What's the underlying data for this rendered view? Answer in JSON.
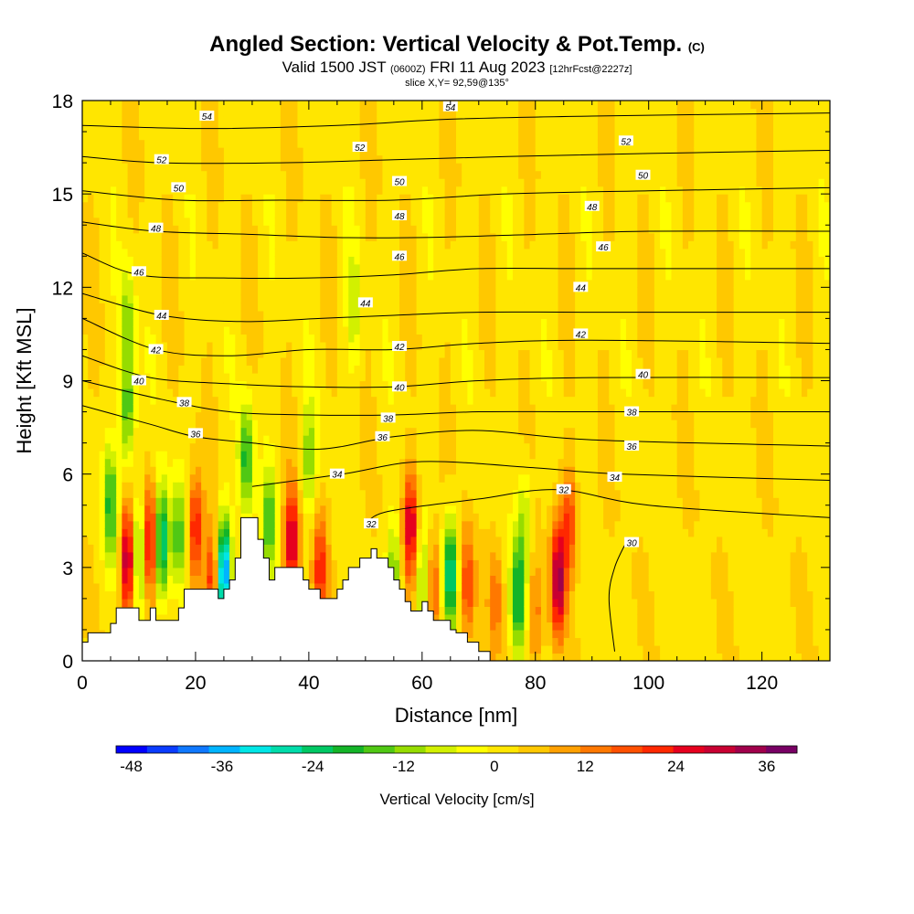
{
  "header": {
    "title_main": "Angled Section: Vertical Velocity & Pot.Temp.",
    "title_unit": "(C)",
    "valid_prefix": "Valid 1500 JST",
    "valid_z": "(0600Z)",
    "valid_date": "FRI 11 Aug 2023",
    "valid_fcst": "[12hrFcst@2227z]",
    "slice": "slice X,Y= 92,59@135°"
  },
  "chart_data": {
    "type": "heatmap",
    "xlabel": "Distance [nm]",
    "ylabel": "Height [Kft MSL]",
    "xlim": [
      0,
      132
    ],
    "ylim": [
      0,
      18
    ],
    "x_ticks": [
      0,
      20,
      40,
      60,
      80,
      100,
      120
    ],
    "y_ticks": [
      0,
      3,
      6,
      9,
      12,
      15,
      18
    ],
    "colorbar": {
      "label": "Vertical Velocity [cm/s]",
      "range": [
        -50,
        40
      ],
      "ticks": [
        -48,
        -36,
        -24,
        -12,
        0,
        12,
        24,
        36
      ],
      "colors": [
        "#0000ff",
        "#0a3cff",
        "#0f78ff",
        "#00b4ff",
        "#00e6e6",
        "#00dcaa",
        "#00c864",
        "#14b428",
        "#50c814",
        "#96dc00",
        "#d2f000",
        "#ffff00",
        "#ffe600",
        "#ffc800",
        "#ffa000",
        "#ff7800",
        "#ff5000",
        "#ff2800",
        "#e6001e",
        "#c80032",
        "#a0004b",
        "#780064"
      ]
    },
    "terrain_x": [
      0,
      1,
      2,
      3,
      4,
      5,
      6,
      7,
      8,
      9,
      10,
      11,
      12,
      13,
      14,
      15,
      16,
      17,
      18,
      19,
      20,
      21,
      22,
      23,
      24,
      25,
      26,
      27,
      28,
      29,
      30,
      31,
      32,
      33,
      34,
      35,
      36,
      37,
      38,
      39,
      40,
      41,
      42,
      43,
      44,
      45,
      46,
      47,
      48,
      49,
      50,
      51,
      52,
      53,
      54,
      55,
      56,
      57,
      58,
      59,
      60,
      61,
      62,
      63,
      64,
      65,
      66,
      67,
      68,
      69,
      70,
      71,
      72,
      73,
      132
    ],
    "terrain_y": [
      0.6,
      0.9,
      0.9,
      0.9,
      0.9,
      1.2,
      1.7,
      1.7,
      1.7,
      1.7,
      1.3,
      1.3,
      1.7,
      1.3,
      1.3,
      1.3,
      1.3,
      1.7,
      2.3,
      2.3,
      2.3,
      2.3,
      2.3,
      2.3,
      2.0,
      2.3,
      2.6,
      3.3,
      4.6,
      4.6,
      4.6,
      3.9,
      3.3,
      2.6,
      3.0,
      3.0,
      3.0,
      3.0,
      3.0,
      2.6,
      2.3,
      2.3,
      2.0,
      2.0,
      2.0,
      2.3,
      2.6,
      3.0,
      3.0,
      3.3,
      3.3,
      3.6,
      3.3,
      3.3,
      3.0,
      2.6,
      2.3,
      1.9,
      1.6,
      1.6,
      1.9,
      1.6,
      1.3,
      1.3,
      1.3,
      1.0,
      0.9,
      0.9,
      0.6,
      0.6,
      0.3,
      0.3,
      0.0,
      0.0,
      0.0
    ],
    "updrafts": [
      {
        "x": 8,
        "z": 3.2,
        "w": 32
      },
      {
        "x": 12,
        "z": 3.8,
        "w": 30
      },
      {
        "x": 20,
        "z": 4.2,
        "w": 24
      },
      {
        "x": 23,
        "z": 2.5,
        "w": 22
      },
      {
        "x": 37,
        "z": 3.8,
        "w": 28
      },
      {
        "x": 42,
        "z": 3.0,
        "w": 20
      },
      {
        "x": 58,
        "z": 4.3,
        "w": 28
      },
      {
        "x": 62,
        "z": 2.4,
        "w": 16
      },
      {
        "x": 68,
        "z": 2.5,
        "w": 18
      },
      {
        "x": 73,
        "z": 2.0,
        "w": 12
      },
      {
        "x": 84,
        "z": 2.6,
        "w": 32
      },
      {
        "x": 86,
        "z": 4.5,
        "w": 18
      },
      {
        "x": 80,
        "z": 1.5,
        "w": 12
      }
    ],
    "downdrafts": [
      {
        "x": 5,
        "z": 5.0,
        "w": -20
      },
      {
        "x": 10,
        "z": 3.5,
        "w": -22
      },
      {
        "x": 14,
        "z": 3.8,
        "w": -32
      },
      {
        "x": 17,
        "z": 4.0,
        "w": -18
      },
      {
        "x": 25,
        "z": 2.8,
        "w": -44
      },
      {
        "x": 29,
        "z": 6.5,
        "w": -22
      },
      {
        "x": 33,
        "z": 4.5,
        "w": -18
      },
      {
        "x": 40,
        "z": 6.5,
        "w": -14
      },
      {
        "x": 48,
        "z": 11.3,
        "w": -10
      },
      {
        "x": 55,
        "z": 2.8,
        "w": -16
      },
      {
        "x": 60,
        "z": 2.5,
        "w": -14
      },
      {
        "x": 65,
        "z": 2.8,
        "w": -30
      },
      {
        "x": 77,
        "z": 2.0,
        "w": -24
      },
      {
        "x": 78,
        "z": 4.5,
        "w": -12
      },
      {
        "x": 8,
        "z": 8.0,
        "w": -20
      },
      {
        "x": 8,
        "z": 11.0,
        "w": -14
      }
    ],
    "contours": [
      {
        "theta": 30,
        "points": [
          [
            96,
            3.8
          ],
          [
            94,
            3.0
          ],
          [
            93,
            2.0
          ],
          [
            94,
            0.3
          ]
        ]
      },
      {
        "theta": 32,
        "points": [
          [
            50,
            4.4
          ],
          [
            54,
            4.8
          ],
          [
            70,
            5.2
          ],
          [
            84,
            5.5
          ],
          [
            100,
            5.0
          ],
          [
            132,
            4.6
          ]
        ]
      },
      {
        "theta": 34,
        "points": [
          [
            30,
            5.6
          ],
          [
            46,
            6.0
          ],
          [
            60,
            6.4
          ],
          [
            80,
            6.2
          ],
          [
            95,
            6.0
          ],
          [
            132,
            5.8
          ]
        ]
      },
      {
        "theta": 36,
        "points": [
          [
            0,
            8.2
          ],
          [
            12,
            7.6
          ],
          [
            20,
            7.2
          ],
          [
            30,
            7.0
          ],
          [
            42,
            6.8
          ],
          [
            55,
            7.2
          ],
          [
            70,
            7.4
          ],
          [
            90,
            7.1
          ],
          [
            132,
            6.9
          ]
        ]
      },
      {
        "theta": 38,
        "points": [
          [
            0,
            9.0
          ],
          [
            14,
            8.4
          ],
          [
            26,
            8.0
          ],
          [
            40,
            7.9
          ],
          [
            55,
            7.9
          ],
          [
            70,
            8.0
          ],
          [
            90,
            8.0
          ],
          [
            132,
            8.0
          ]
        ]
      },
      {
        "theta": 40,
        "points": [
          [
            0,
            9.8
          ],
          [
            12,
            9.1
          ],
          [
            26,
            8.9
          ],
          [
            40,
            8.8
          ],
          [
            55,
            8.8
          ],
          [
            70,
            9.0
          ],
          [
            90,
            9.1
          ],
          [
            132,
            9.1
          ]
        ]
      },
      {
        "theta": 42,
        "points": [
          [
            0,
            11.0
          ],
          [
            13,
            10.0
          ],
          [
            26,
            9.8
          ],
          [
            40,
            10.0
          ],
          [
            55,
            10.0
          ],
          [
            70,
            10.2
          ],
          [
            90,
            10.3
          ],
          [
            132,
            10.2
          ]
        ]
      },
      {
        "theta": 44,
        "points": [
          [
            0,
            11.8
          ],
          [
            14,
            11.1
          ],
          [
            28,
            10.9
          ],
          [
            42,
            11.0
          ],
          [
            55,
            11.1
          ],
          [
            70,
            11.2
          ],
          [
            90,
            11.2
          ],
          [
            132,
            11.2
          ]
        ]
      },
      {
        "theta": 46,
        "points": [
          [
            0,
            13.1
          ],
          [
            10,
            12.4
          ],
          [
            25,
            12.3
          ],
          [
            40,
            12.3
          ],
          [
            55,
            12.4
          ],
          [
            70,
            12.6
          ],
          [
            90,
            12.6
          ],
          [
            132,
            12.6
          ]
        ]
      },
      {
        "theta": 48,
        "points": [
          [
            0,
            14.1
          ],
          [
            13,
            13.8
          ],
          [
            30,
            13.7
          ],
          [
            45,
            13.6
          ],
          [
            60,
            13.6
          ],
          [
            80,
            13.7
          ],
          [
            100,
            13.8
          ],
          [
            132,
            13.8
          ]
        ]
      },
      {
        "theta": 50,
        "points": [
          [
            0,
            15.1
          ],
          [
            17,
            14.8
          ],
          [
            35,
            14.8
          ],
          [
            55,
            14.8
          ],
          [
            75,
            15.0
          ],
          [
            100,
            15.1
          ],
          [
            132,
            15.2
          ]
        ]
      },
      {
        "theta": 52,
        "points": [
          [
            0,
            16.2
          ],
          [
            14,
            16.0
          ],
          [
            35,
            16.0
          ],
          [
            55,
            16.1
          ],
          [
            75,
            16.2
          ],
          [
            100,
            16.3
          ],
          [
            132,
            16.4
          ]
        ]
      },
      {
        "theta": 54,
        "points": [
          [
            0,
            17.2
          ],
          [
            22,
            17.1
          ],
          [
            45,
            17.2
          ],
          [
            65,
            17.4
          ],
          [
            90,
            17.5
          ],
          [
            132,
            17.6
          ]
        ]
      }
    ],
    "contour_labels": [
      {
        "x": 22,
        "z": 17.5,
        "text": "54"
      },
      {
        "x": 65,
        "z": 17.8,
        "text": "54"
      },
      {
        "x": 14,
        "z": 16.1,
        "text": "52"
      },
      {
        "x": 49,
        "z": 16.5,
        "text": "52"
      },
      {
        "x": 96,
        "z": 16.7,
        "text": "52"
      },
      {
        "x": 17,
        "z": 15.2,
        "text": "50"
      },
      {
        "x": 56,
        "z": 15.4,
        "text": "50"
      },
      {
        "x": 99,
        "z": 15.6,
        "text": "50"
      },
      {
        "x": 13,
        "z": 13.9,
        "text": "48"
      },
      {
        "x": 56,
        "z": 14.3,
        "text": "48"
      },
      {
        "x": 90,
        "z": 14.6,
        "text": "48"
      },
      {
        "x": 10,
        "z": 12.5,
        "text": "46"
      },
      {
        "x": 56,
        "z": 13.0,
        "text": "46"
      },
      {
        "x": 92,
        "z": 13.3,
        "text": "46"
      },
      {
        "x": 14,
        "z": 11.1,
        "text": "44"
      },
      {
        "x": 50,
        "z": 11.5,
        "text": "44"
      },
      {
        "x": 88,
        "z": 12.0,
        "text": "44"
      },
      {
        "x": 13,
        "z": 10.0,
        "text": "42"
      },
      {
        "x": 56,
        "z": 10.1,
        "text": "42"
      },
      {
        "x": 88,
        "z": 10.5,
        "text": "42"
      },
      {
        "x": 10,
        "z": 9.0,
        "text": "40"
      },
      {
        "x": 56,
        "z": 8.8,
        "text": "40"
      },
      {
        "x": 99,
        "z": 9.2,
        "text": "40"
      },
      {
        "x": 18,
        "z": 8.3,
        "text": "38"
      },
      {
        "x": 54,
        "z": 7.8,
        "text": "38"
      },
      {
        "x": 97,
        "z": 8.0,
        "text": "38"
      },
      {
        "x": 20,
        "z": 7.3,
        "text": "36"
      },
      {
        "x": 53,
        "z": 7.2,
        "text": "36"
      },
      {
        "x": 97,
        "z": 6.9,
        "text": "36"
      },
      {
        "x": 45,
        "z": 6.0,
        "text": "34"
      },
      {
        "x": 94,
        "z": 5.9,
        "text": "34"
      },
      {
        "x": 51,
        "z": 4.4,
        "text": "32"
      },
      {
        "x": 85,
        "z": 5.5,
        "text": "32"
      },
      {
        "x": 97,
        "z": 3.8,
        "text": "30"
      }
    ]
  }
}
